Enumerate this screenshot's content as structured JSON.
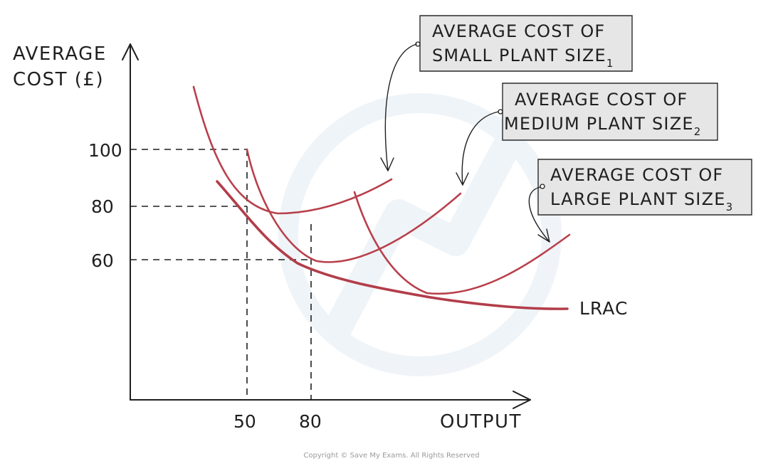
{
  "chart_data": {
    "type": "line",
    "title": "",
    "ylabel_line1": "AVERAGE",
    "ylabel_line2": "COST (£)",
    "xlabel": "OUTPUT",
    "y_ticks": [
      {
        "value": 100,
        "label": "100"
      },
      {
        "value": 80,
        "label": "80"
      },
      {
        "value": 60,
        "label": "60"
      }
    ],
    "x_ticks": [
      {
        "value": 50,
        "label": "50"
      },
      {
        "value": 80,
        "label": "80"
      }
    ],
    "series": [
      {
        "name": "AVERAGE COST OF SMALL PLANT SIZE",
        "subscript": "1",
        "callout_line1": "AVERAGE COST OF",
        "callout_line2": "SMALL PLANT SIZE",
        "color": "#b8404c"
      },
      {
        "name": "AVERAGE COST OF MEDIUM PLANT SIZE",
        "subscript": "2",
        "callout_line1": "AVERAGE COST OF",
        "callout_line2": "MEDIUM PLANT SIZE",
        "color": "#b8404c"
      },
      {
        "name": "AVERAGE COST OF LARGE PLANT SIZE",
        "subscript": "3",
        "callout_line1": "AVERAGE COST OF",
        "callout_line2": "LARGE PLANT SIZE",
        "color": "#b8404c"
      },
      {
        "name": "LRAC",
        "label": "LRAC",
        "color": "#b23d4a"
      }
    ],
    "reference_points": [
      {
        "x": 50,
        "y": 100
      },
      {
        "x": 50,
        "y": 80
      },
      {
        "x": 80,
        "y": 60
      }
    ],
    "axis_color": "#1f1f1f",
    "curve_color": "#b8404c",
    "callout_fill": "#e6e6e6"
  },
  "footer": {
    "copyright": "Copyright © Save My Exams. All Rights Reserved"
  }
}
